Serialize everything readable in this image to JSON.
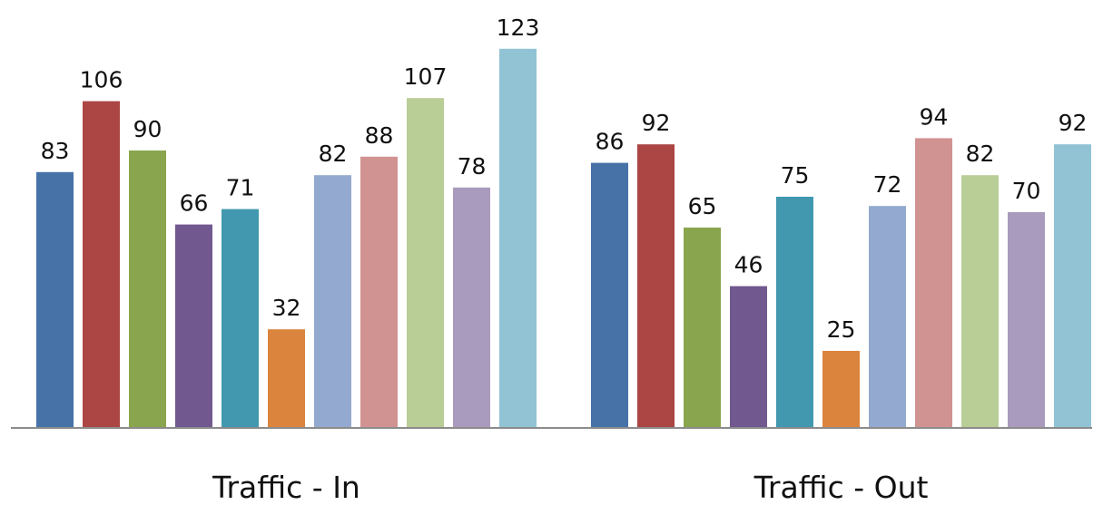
{
  "chart_data": {
    "type": "bar",
    "title": "",
    "xlabel": "",
    "ylabel": "",
    "ylim": [
      0,
      130
    ],
    "grid": false,
    "legend": "none",
    "categories": [
      "Traffic - In",
      "Traffic - Out"
    ],
    "series": [
      {
        "color": "#4672A8",
        "values": [
          83,
          86
        ]
      },
      {
        "color": "#AB4644",
        "values": [
          106,
          92
        ]
      },
      {
        "color": "#89A54E",
        "values": [
          90,
          65
        ]
      },
      {
        "color": "#71588F",
        "values": [
          66,
          46
        ]
      },
      {
        "color": "#4198AF",
        "values": [
          71,
          75
        ]
      },
      {
        "color": "#DB843D",
        "values": [
          32,
          25
        ]
      },
      {
        "color": "#93A9CF",
        "values": [
          82,
          72
        ]
      },
      {
        "color": "#D19392",
        "values": [
          88,
          94
        ]
      },
      {
        "color": "#B9CD96",
        "values": [
          107,
          82
        ]
      },
      {
        "color": "#A99BBD",
        "values": [
          78,
          70
        ]
      },
      {
        "color": "#91C3D5",
        "values": [
          123,
          92
        ]
      }
    ],
    "axis_color": "#8C8C8C"
  }
}
